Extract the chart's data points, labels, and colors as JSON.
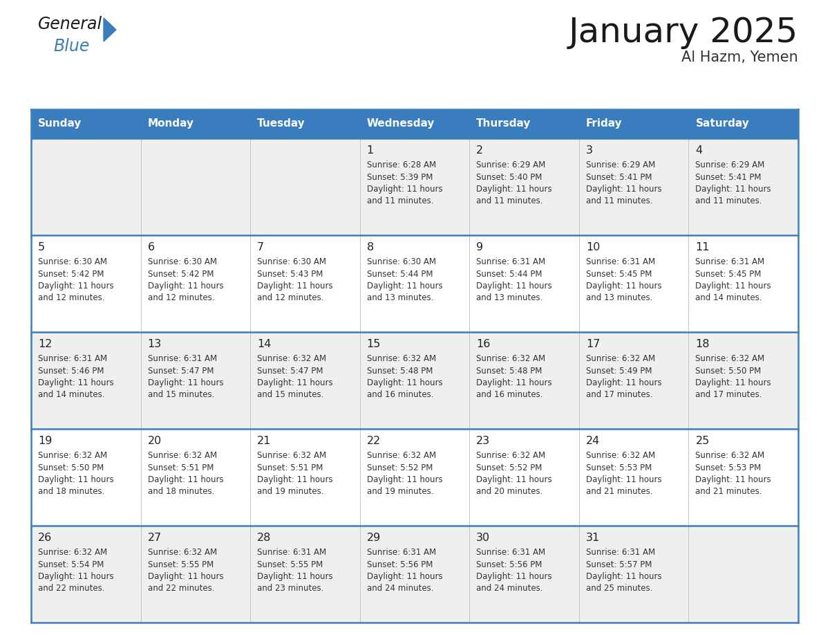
{
  "title": "January 2025",
  "subtitle": "Al Hazm, Yemen",
  "days_of_week": [
    "Sunday",
    "Monday",
    "Tuesday",
    "Wednesday",
    "Thursday",
    "Friday",
    "Saturday"
  ],
  "header_bg": "#3a7dbf",
  "header_text": "#ffffff",
  "row_bg_odd": "#efefef",
  "row_bg_even": "#ffffff",
  "border_color": "#3a7dbf",
  "day_num_color": "#222222",
  "cell_text_color": "#333333",
  "calendar_data": [
    [
      null,
      null,
      null,
      {
        "day": 1,
        "sunrise": "6:28 AM",
        "sunset": "5:39 PM",
        "daylight_line1": "11 hours",
        "daylight_line2": "and 11 minutes."
      },
      {
        "day": 2,
        "sunrise": "6:29 AM",
        "sunset": "5:40 PM",
        "daylight_line1": "11 hours",
        "daylight_line2": "and 11 minutes."
      },
      {
        "day": 3,
        "sunrise": "6:29 AM",
        "sunset": "5:41 PM",
        "daylight_line1": "11 hours",
        "daylight_line2": "and 11 minutes."
      },
      {
        "day": 4,
        "sunrise": "6:29 AM",
        "sunset": "5:41 PM",
        "daylight_line1": "11 hours",
        "daylight_line2": "and 11 minutes."
      }
    ],
    [
      {
        "day": 5,
        "sunrise": "6:30 AM",
        "sunset": "5:42 PM",
        "daylight_line1": "11 hours",
        "daylight_line2": "and 12 minutes."
      },
      {
        "day": 6,
        "sunrise": "6:30 AM",
        "sunset": "5:42 PM",
        "daylight_line1": "11 hours",
        "daylight_line2": "and 12 minutes."
      },
      {
        "day": 7,
        "sunrise": "6:30 AM",
        "sunset": "5:43 PM",
        "daylight_line1": "11 hours",
        "daylight_line2": "and 12 minutes."
      },
      {
        "day": 8,
        "sunrise": "6:30 AM",
        "sunset": "5:44 PM",
        "daylight_line1": "11 hours",
        "daylight_line2": "and 13 minutes."
      },
      {
        "day": 9,
        "sunrise": "6:31 AM",
        "sunset": "5:44 PM",
        "daylight_line1": "11 hours",
        "daylight_line2": "and 13 minutes."
      },
      {
        "day": 10,
        "sunrise": "6:31 AM",
        "sunset": "5:45 PM",
        "daylight_line1": "11 hours",
        "daylight_line2": "and 13 minutes."
      },
      {
        "day": 11,
        "sunrise": "6:31 AM",
        "sunset": "5:45 PM",
        "daylight_line1": "11 hours",
        "daylight_line2": "and 14 minutes."
      }
    ],
    [
      {
        "day": 12,
        "sunrise": "6:31 AM",
        "sunset": "5:46 PM",
        "daylight_line1": "11 hours",
        "daylight_line2": "and 14 minutes."
      },
      {
        "day": 13,
        "sunrise": "6:31 AM",
        "sunset": "5:47 PM",
        "daylight_line1": "11 hours",
        "daylight_line2": "and 15 minutes."
      },
      {
        "day": 14,
        "sunrise": "6:32 AM",
        "sunset": "5:47 PM",
        "daylight_line1": "11 hours",
        "daylight_line2": "and 15 minutes."
      },
      {
        "day": 15,
        "sunrise": "6:32 AM",
        "sunset": "5:48 PM",
        "daylight_line1": "11 hours",
        "daylight_line2": "and 16 minutes."
      },
      {
        "day": 16,
        "sunrise": "6:32 AM",
        "sunset": "5:48 PM",
        "daylight_line1": "11 hours",
        "daylight_line2": "and 16 minutes."
      },
      {
        "day": 17,
        "sunrise": "6:32 AM",
        "sunset": "5:49 PM",
        "daylight_line1": "11 hours",
        "daylight_line2": "and 17 minutes."
      },
      {
        "day": 18,
        "sunrise": "6:32 AM",
        "sunset": "5:50 PM",
        "daylight_line1": "11 hours",
        "daylight_line2": "and 17 minutes."
      }
    ],
    [
      {
        "day": 19,
        "sunrise": "6:32 AM",
        "sunset": "5:50 PM",
        "daylight_line1": "11 hours",
        "daylight_line2": "and 18 minutes."
      },
      {
        "day": 20,
        "sunrise": "6:32 AM",
        "sunset": "5:51 PM",
        "daylight_line1": "11 hours",
        "daylight_line2": "and 18 minutes."
      },
      {
        "day": 21,
        "sunrise": "6:32 AM",
        "sunset": "5:51 PM",
        "daylight_line1": "11 hours",
        "daylight_line2": "and 19 minutes."
      },
      {
        "day": 22,
        "sunrise": "6:32 AM",
        "sunset": "5:52 PM",
        "daylight_line1": "11 hours",
        "daylight_line2": "and 19 minutes."
      },
      {
        "day": 23,
        "sunrise": "6:32 AM",
        "sunset": "5:52 PM",
        "daylight_line1": "11 hours",
        "daylight_line2": "and 20 minutes."
      },
      {
        "day": 24,
        "sunrise": "6:32 AM",
        "sunset": "5:53 PM",
        "daylight_line1": "11 hours",
        "daylight_line2": "and 21 minutes."
      },
      {
        "day": 25,
        "sunrise": "6:32 AM",
        "sunset": "5:53 PM",
        "daylight_line1": "11 hours",
        "daylight_line2": "and 21 minutes."
      }
    ],
    [
      {
        "day": 26,
        "sunrise": "6:32 AM",
        "sunset": "5:54 PM",
        "daylight_line1": "11 hours",
        "daylight_line2": "and 22 minutes."
      },
      {
        "day": 27,
        "sunrise": "6:32 AM",
        "sunset": "5:55 PM",
        "daylight_line1": "11 hours",
        "daylight_line2": "and 22 minutes."
      },
      {
        "day": 28,
        "sunrise": "6:31 AM",
        "sunset": "5:55 PM",
        "daylight_line1": "11 hours",
        "daylight_line2": "and 23 minutes."
      },
      {
        "day": 29,
        "sunrise": "6:31 AM",
        "sunset": "5:56 PM",
        "daylight_line1": "11 hours",
        "daylight_line2": "and 24 minutes."
      },
      {
        "day": 30,
        "sunrise": "6:31 AM",
        "sunset": "5:56 PM",
        "daylight_line1": "11 hours",
        "daylight_line2": "and 24 minutes."
      },
      {
        "day": 31,
        "sunrise": "6:31 AM",
        "sunset": "5:57 PM",
        "daylight_line1": "11 hours",
        "daylight_line2": "and 25 minutes."
      },
      null
    ]
  ]
}
